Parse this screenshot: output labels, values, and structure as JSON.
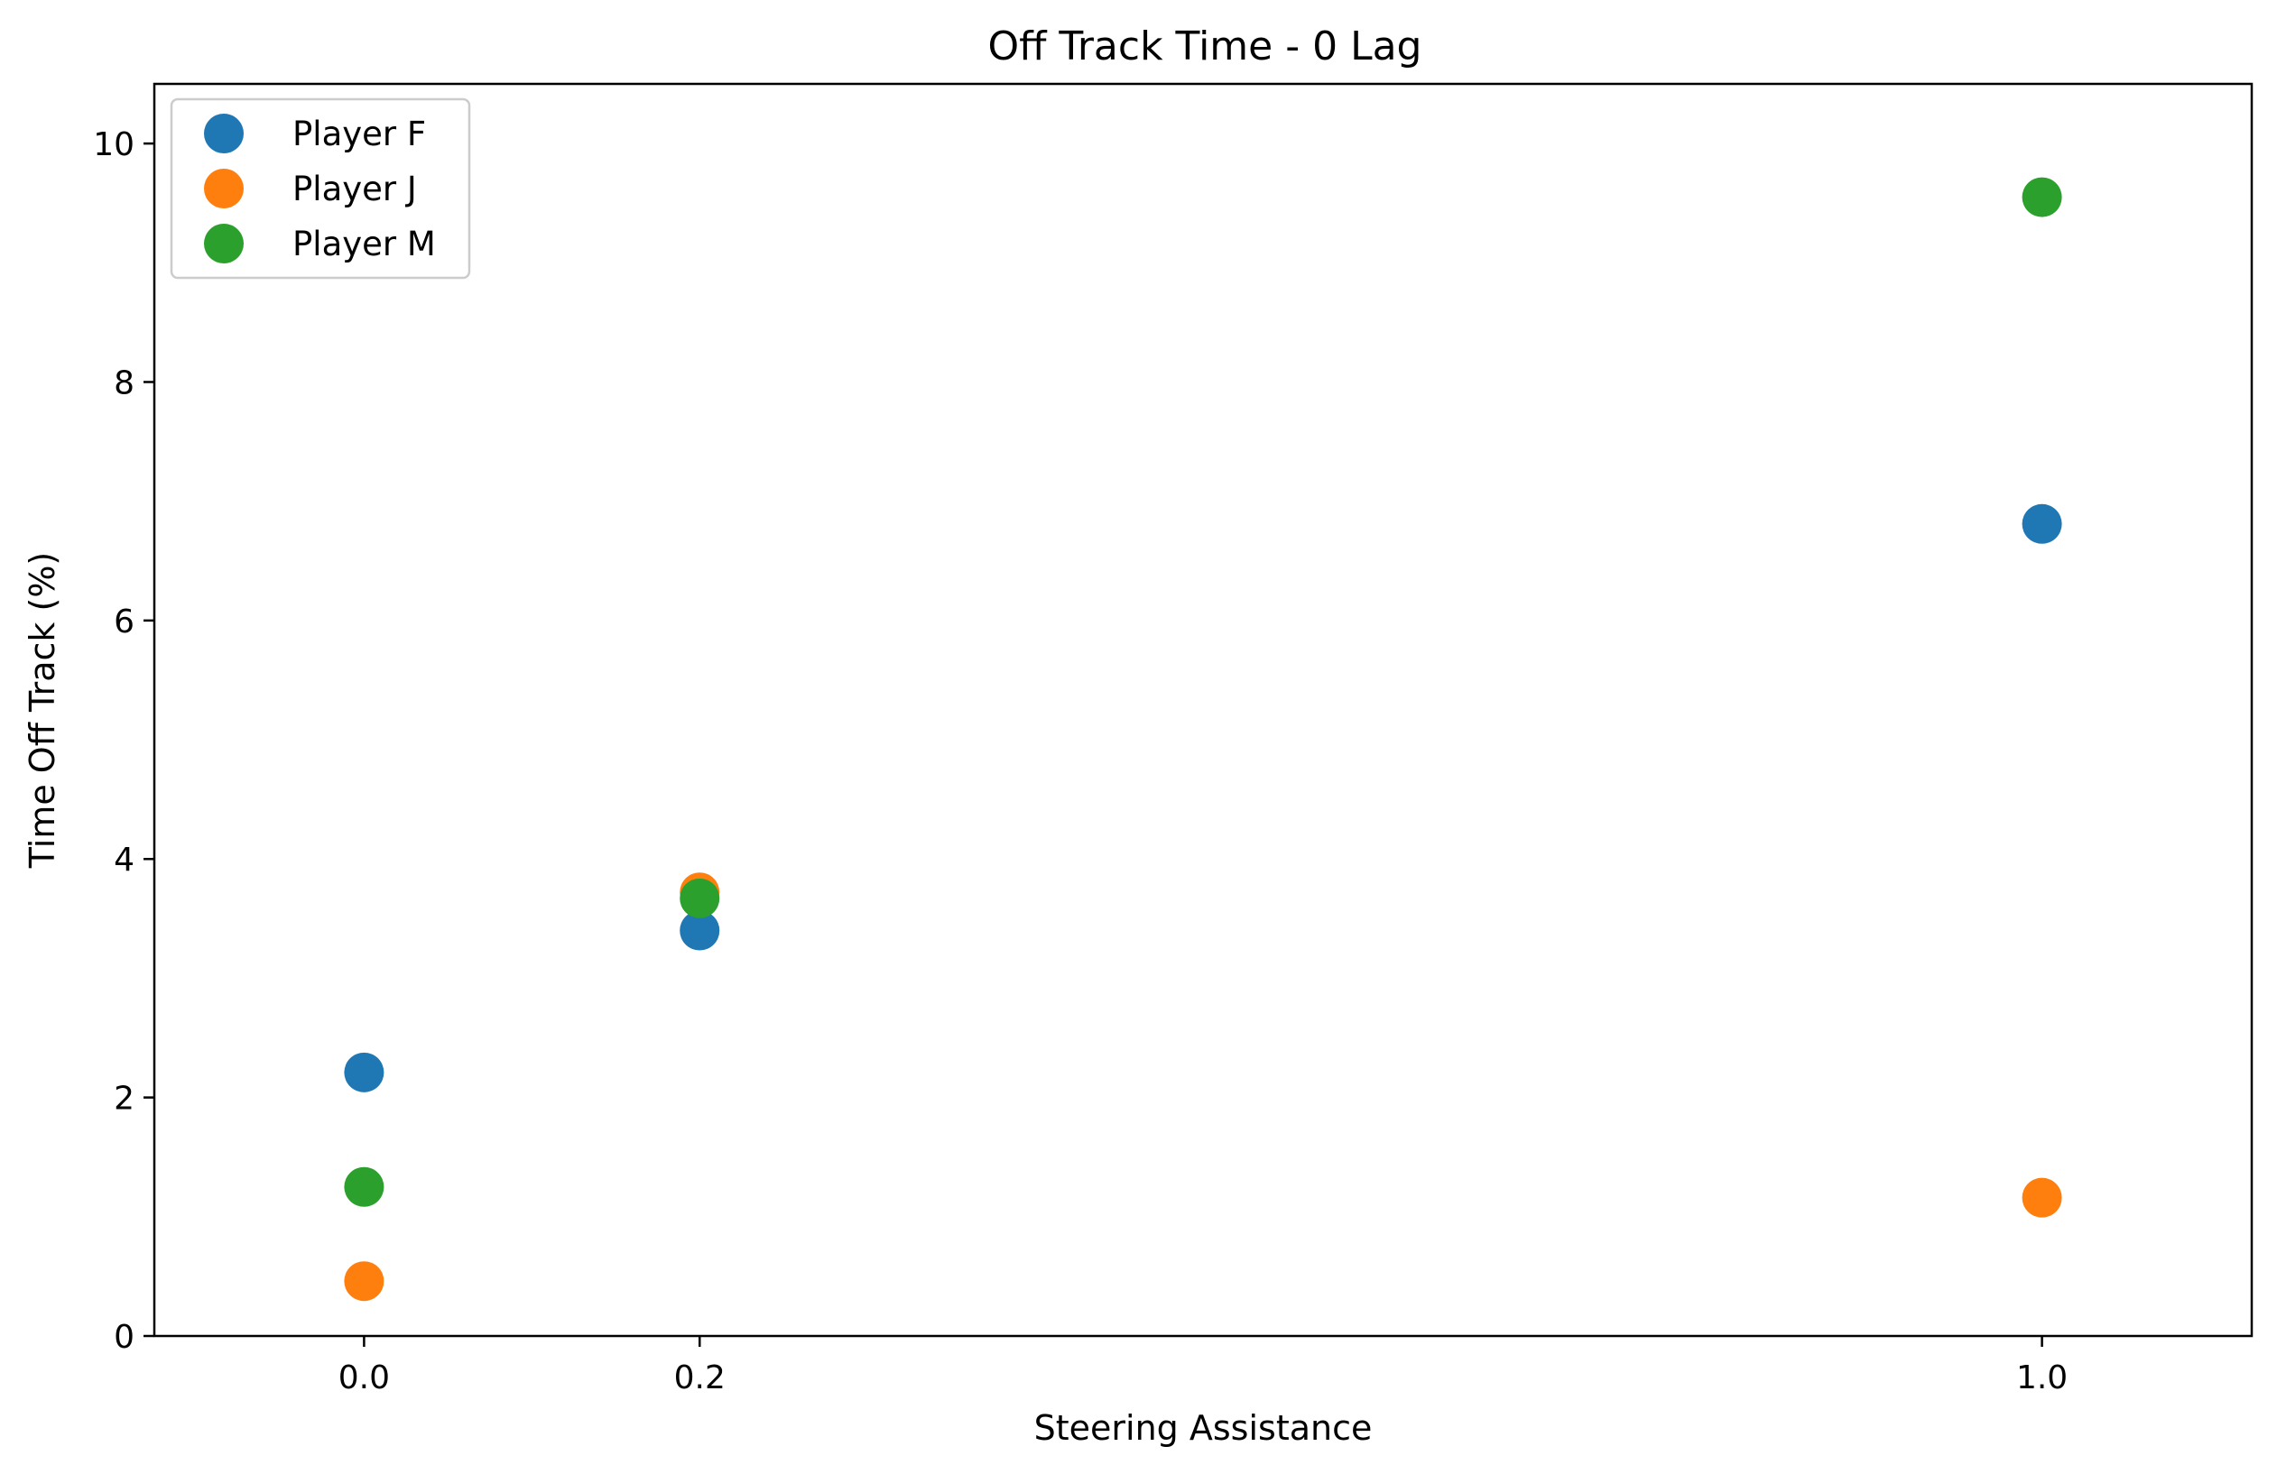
{
  "chart_data": {
    "type": "scatter",
    "title": "Off Track Time - 0 Lag",
    "xlabel": "Steering Assistance",
    "ylabel": "Time Off Track (%)",
    "xlim": [
      -0.125,
      1.125
    ],
    "ylim": [
      0,
      10.5
    ],
    "xticks": [
      0.0,
      0.2,
      1.0
    ],
    "xtick_labels": [
      "0.0",
      "0.2",
      "1.0"
    ],
    "yticks": [
      0,
      2,
      4,
      6,
      8,
      10
    ],
    "ytick_labels": [
      "0",
      "2",
      "4",
      "6",
      "8",
      "10"
    ],
    "grid": false,
    "legend_position": "top-left",
    "series": [
      {
        "name": "Player F",
        "color": "#1f77b4",
        "x": [
          0.0,
          0.2,
          1.0
        ],
        "y": [
          2.21,
          3.4,
          6.81
        ]
      },
      {
        "name": "Player J",
        "color": "#ff7f0e",
        "x": [
          0.0,
          0.2,
          1.0
        ],
        "y": [
          0.46,
          3.72,
          1.16
        ]
      },
      {
        "name": "Player M",
        "color": "#2ca02c",
        "x": [
          0.0,
          0.2,
          1.0
        ],
        "y": [
          1.25,
          3.67,
          9.55
        ]
      }
    ]
  }
}
